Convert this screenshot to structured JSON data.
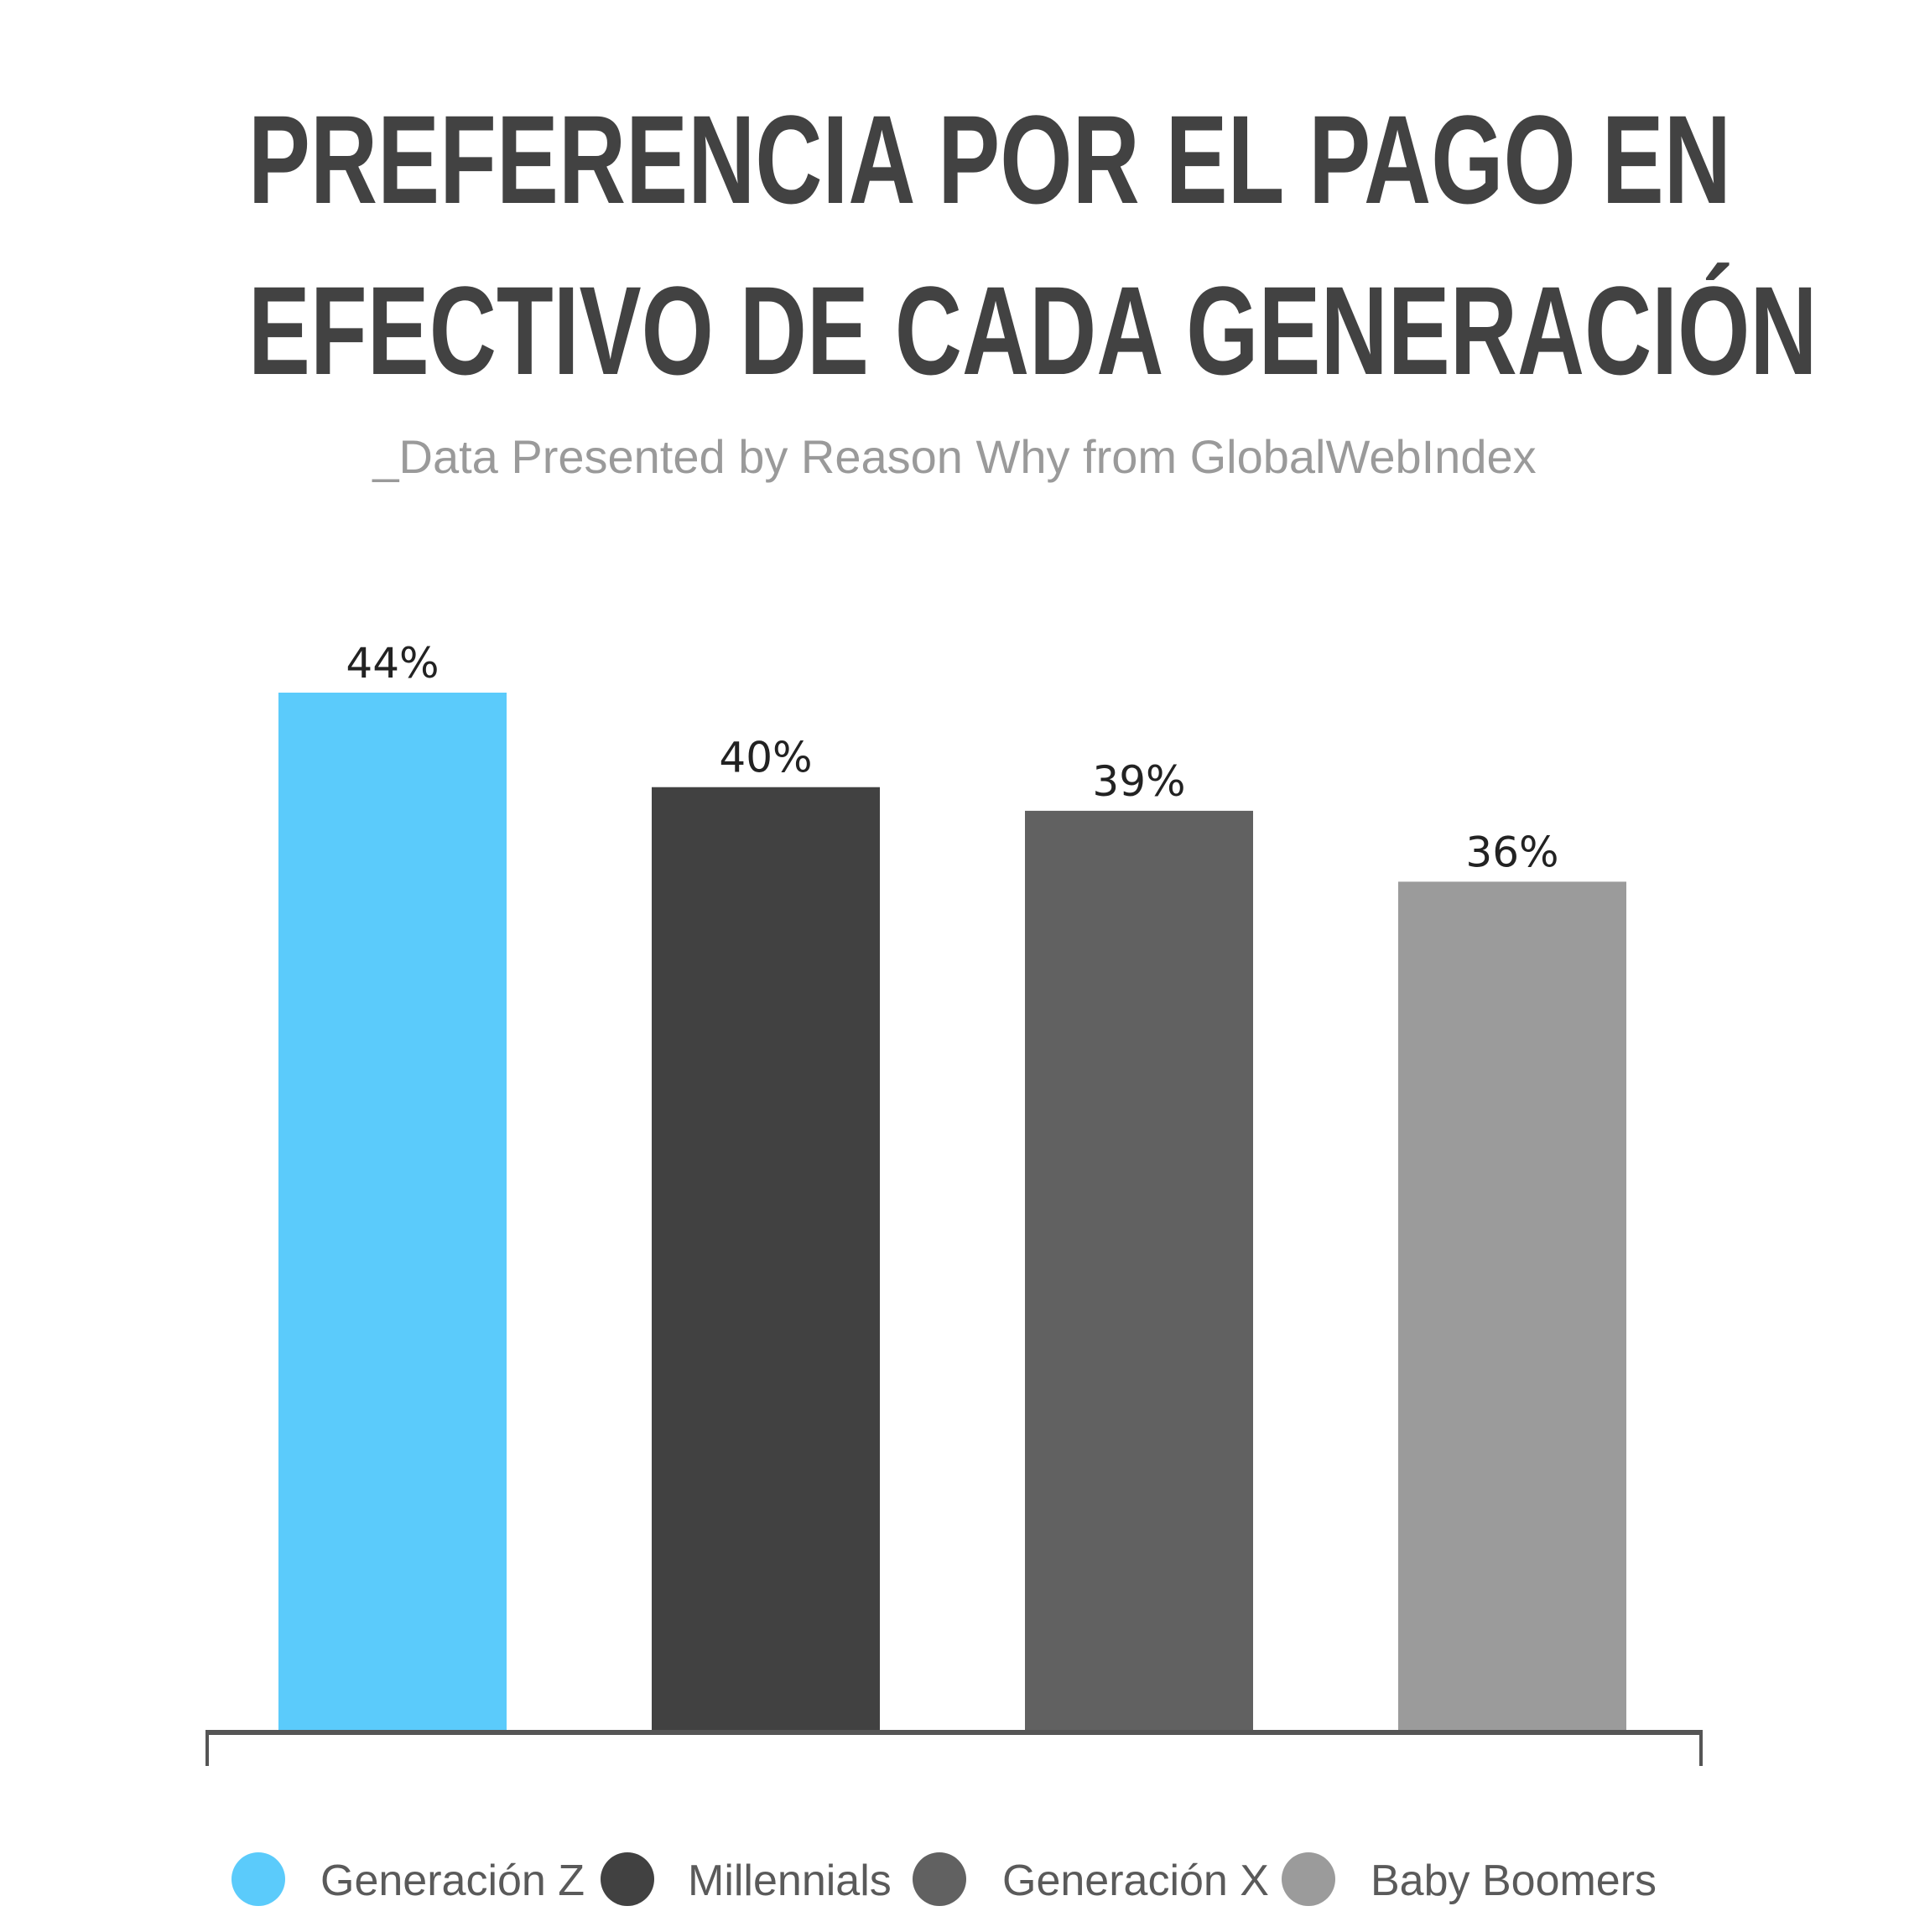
{
  "title_lines": [
    "PREFERENCIA POR EL PAGO EN",
    "EFECTIVO DE CADA GENERACIÓN"
  ],
  "subtitle": "_Data Presented by Reason Why from GlobalWebIndex",
  "chart_data": {
    "type": "bar",
    "title": "PREFERENCIA POR EL PAGO EN EFECTIVO DE CADA GENERACIÓN",
    "subtitle": "_Data Presented by Reason Why from GlobalWebIndex",
    "categories": [
      "Generación Z",
      "Millennials",
      "Generación X",
      "Baby Boomers"
    ],
    "values": [
      44,
      40,
      39,
      36
    ],
    "data_labels": [
      "44%",
      "40%",
      "39%",
      "36%"
    ],
    "colors": [
      "#5BCBFB",
      "#414141",
      "#616161",
      "#9B9B9B"
    ],
    "ylim": [
      0,
      44
    ],
    "grid": false,
    "legend": {
      "position": "bottom",
      "entries": [
        "Generación Z",
        "Millennials",
        "Generación X",
        "Baby Boomers"
      ]
    },
    "xlabel": "",
    "ylabel": ""
  }
}
